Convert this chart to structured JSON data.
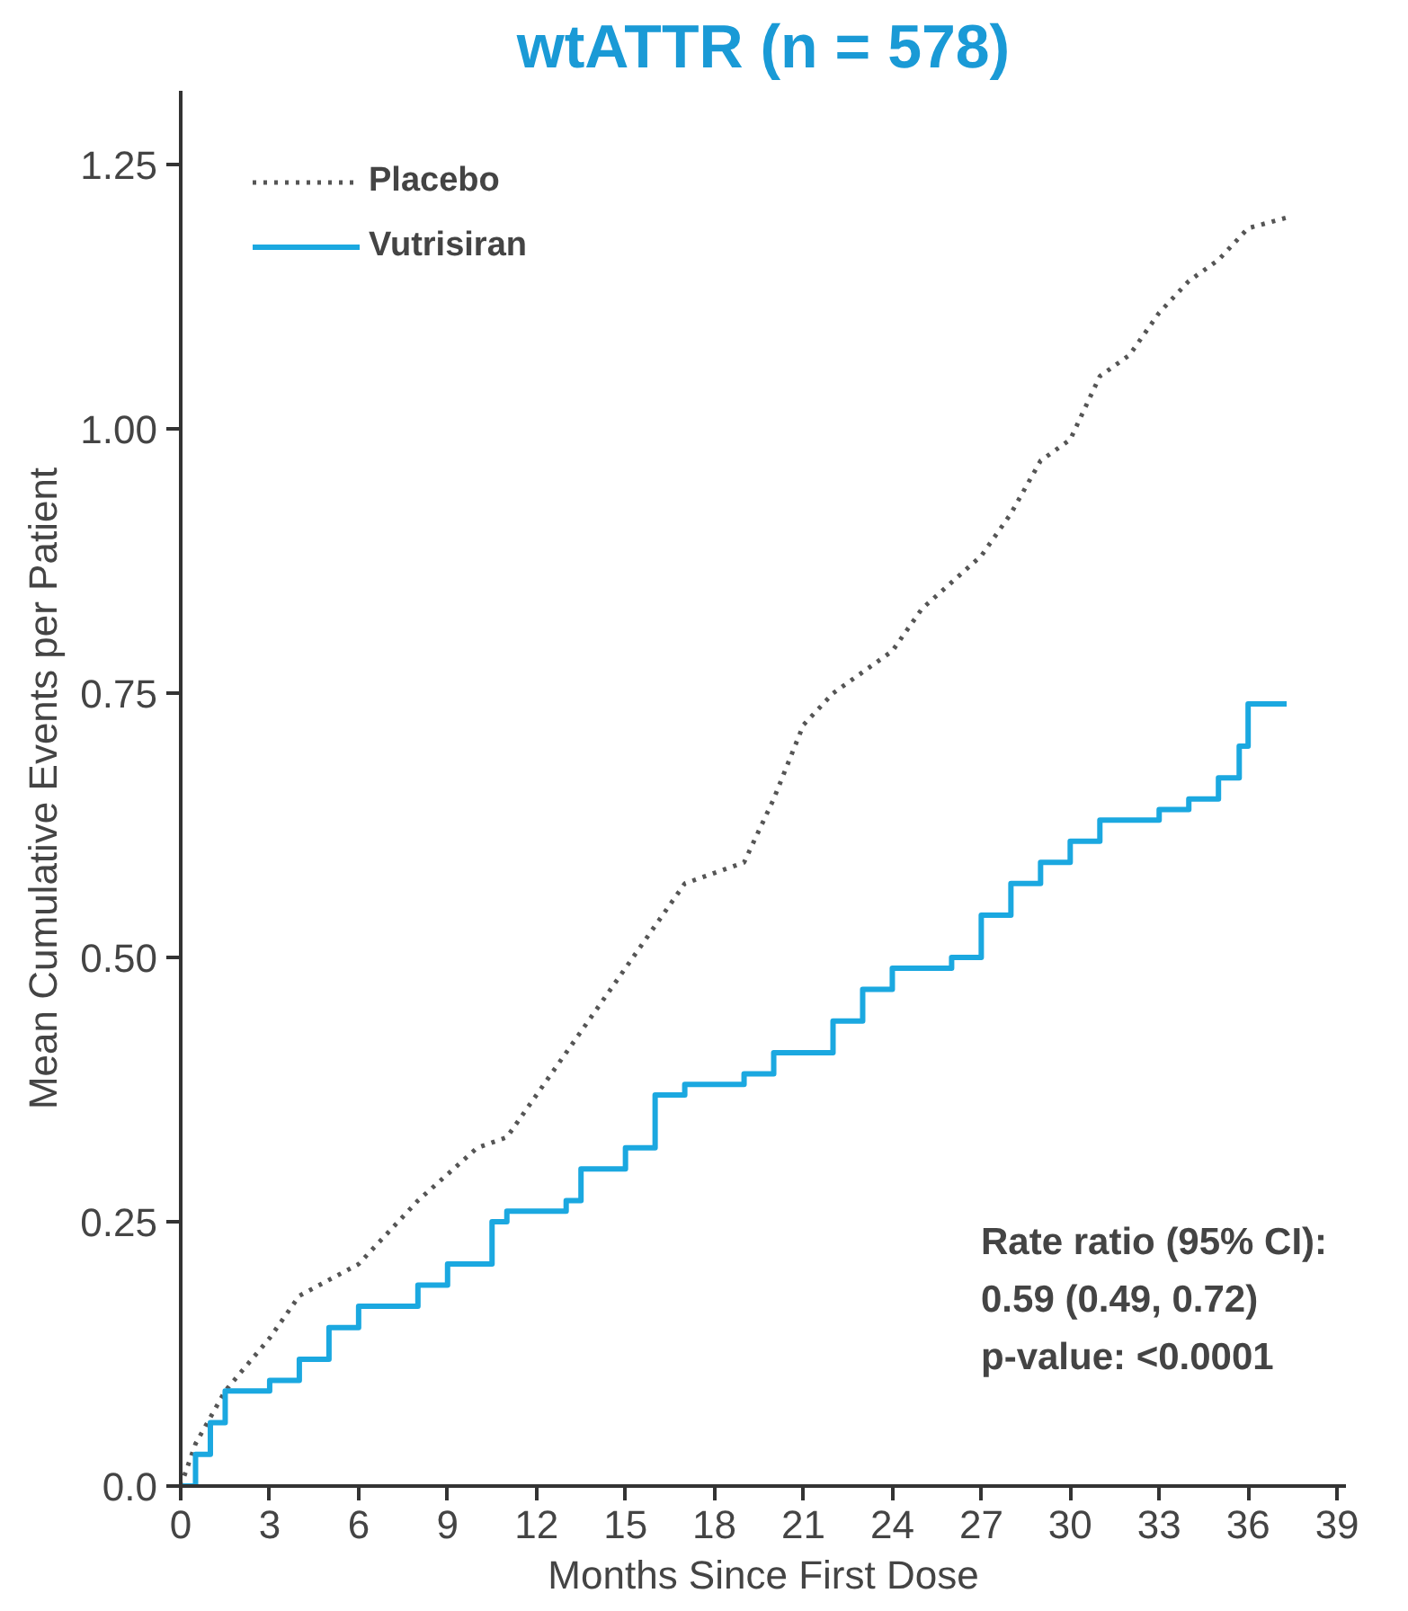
{
  "chart_data": {
    "type": "step",
    "title": "wtATTR (n = 578)",
    "xlabel": "Months Since First Dose",
    "ylabel": "Mean Cumulative Events per Patient",
    "xlim": [
      0,
      39.3
    ],
    "xticks": [
      0,
      3,
      6,
      9,
      12,
      15,
      18,
      21,
      24,
      27,
      30,
      33,
      36,
      39
    ],
    "ylim": [
      0,
      1.32
    ],
    "yticks": [
      {
        "value": 0,
        "label": "0.0"
      },
      1.25,
      {
        "value": 1.0,
        "label": "1.00"
      },
      0.75,
      {
        "value": 0.5,
        "label": "0.50"
      },
      0.25
    ],
    "legend": "top left",
    "grid": false,
    "series": [
      {
        "name": "Placebo",
        "color": "#555555",
        "line_style": "dotted",
        "type": "line",
        "x": [
          0,
          0.5,
          1.5,
          3,
          4,
          6,
          8,
          10,
          11,
          12,
          14,
          15,
          16,
          17,
          18,
          19,
          20,
          21,
          22,
          24,
          25,
          27,
          28,
          29,
          30,
          31,
          32,
          33,
          34,
          35,
          36,
          37.3
        ],
        "values": [
          0,
          0.04,
          0.09,
          0.14,
          0.18,
          0.21,
          0.27,
          0.32,
          0.33,
          0.37,
          0.45,
          0.49,
          0.53,
          0.57,
          0.58,
          0.59,
          0.65,
          0.72,
          0.75,
          0.79,
          0.83,
          0.88,
          0.92,
          0.97,
          0.99,
          1.05,
          1.07,
          1.11,
          1.14,
          1.16,
          1.19,
          1.2
        ]
      },
      {
        "name": "Vutrisiran",
        "color": "#1ba8e0",
        "line_style": "solid",
        "x": [
          0,
          0.5,
          1,
          1.5,
          3,
          4,
          5,
          6,
          8,
          9,
          10,
          10.5,
          11,
          13,
          13.5,
          15,
          16,
          17,
          19,
          20,
          22,
          23,
          24,
          26,
          27,
          28,
          29,
          30,
          31,
          33,
          34,
          35,
          35.7,
          36,
          37.3
        ],
        "values": [
          0,
          0.03,
          0.06,
          0.09,
          0.1,
          0.12,
          0.15,
          0.17,
          0.19,
          0.21,
          0.21,
          0.25,
          0.26,
          0.27,
          0.3,
          0.32,
          0.37,
          0.38,
          0.39,
          0.41,
          0.44,
          0.47,
          0.49,
          0.5,
          0.54,
          0.57,
          0.59,
          0.61,
          0.63,
          0.64,
          0.65,
          0.67,
          0.7,
          0.74,
          0.74
        ]
      }
    ],
    "annotations": [
      "Rate ratio (95% CI):",
      "0.59 (0.49, 0.72)",
      "p-value: <0.0001"
    ]
  }
}
